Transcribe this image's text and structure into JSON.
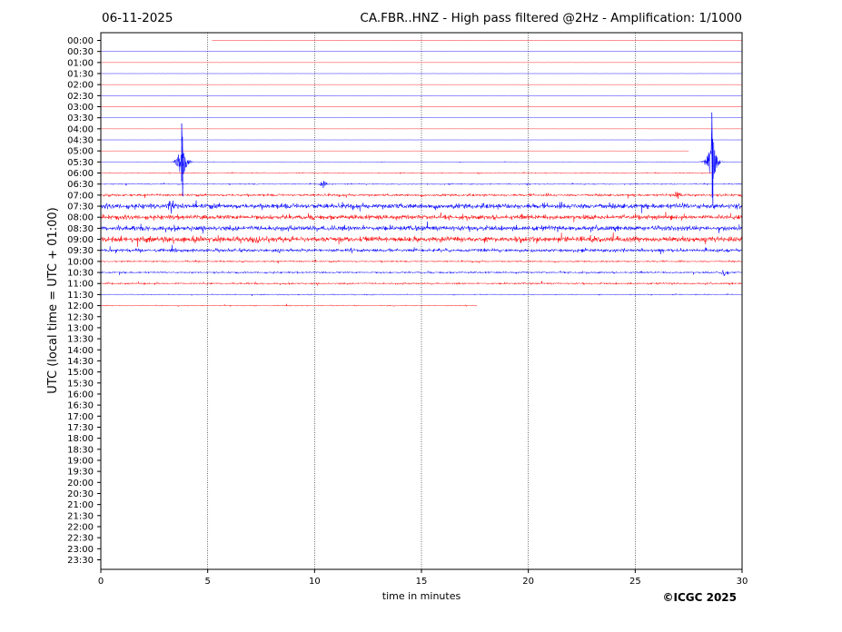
{
  "header": {
    "date": "06-11-2025",
    "title": "CA.FBR..HNZ - High pass filtered @2Hz - Amplification: 1/1000"
  },
  "footer": {
    "copyright": "©ICGC 2025"
  },
  "colors": {
    "trace_a": "#ff0000",
    "trace_b": "#0000ff",
    "grid": "#000000"
  },
  "chart_data": {
    "type": "line",
    "title": "CA.FBR..HNZ - High pass filtered @2Hz - Amplification: 1/1000",
    "xlabel": "time in minutes",
    "ylabel": "UTC (local time = UTC + 01:00)",
    "xlim": [
      0,
      30
    ],
    "x_ticks": [
      "0",
      "5",
      "10",
      "15",
      "20",
      "25",
      "30"
    ],
    "grid": "vertical dotted lines at 5-minute intervals",
    "rows": [
      "00:00",
      "00:30",
      "01:00",
      "01:30",
      "02:00",
      "02:30",
      "03:00",
      "03:30",
      "04:00",
      "04:30",
      "05:00",
      "05:30",
      "06:00",
      "06:30",
      "07:00",
      "07:30",
      "08:00",
      "08:30",
      "09:00",
      "09:30",
      "10:00",
      "10:30",
      "11:00",
      "11:30",
      "12:00",
      "12:30",
      "13:00",
      "13:30",
      "14:00",
      "14:30",
      "15:00",
      "15:30",
      "16:00",
      "16:30",
      "17:00",
      "17:30",
      "18:00",
      "18:30",
      "19:00",
      "19:30",
      "20:00",
      "20:30",
      "21:00",
      "21:30",
      "22:00",
      "22:30",
      "23:00",
      "23:30"
    ],
    "trace_color_order": [
      "red",
      "blue"
    ],
    "trace_start_minute": [
      5.2,
      0,
      0,
      0,
      0,
      0,
      0,
      0,
      0,
      0,
      0,
      0,
      0,
      0,
      0,
      0,
      0,
      0,
      0,
      0,
      0,
      0,
      0,
      0,
      0
    ],
    "trace_end_minute": [
      30,
      30,
      30,
      30,
      30,
      30,
      30,
      30,
      30,
      30,
      27.5,
      30,
      28.6,
      30,
      30,
      30,
      30,
      30,
      30,
      30,
      30,
      30,
      30,
      30,
      17.6
    ],
    "noise_level": [
      0.1,
      0.1,
      0.1,
      0.1,
      0.1,
      0.1,
      0.1,
      0.1,
      0.1,
      0.1,
      0.1,
      0.3,
      0.5,
      0.6,
      1.2,
      2.5,
      2.2,
      2.4,
      2.6,
      1.6,
      0.8,
      0.9,
      0.9,
      0.5,
      0.5
    ],
    "events": [
      {
        "row": "05:30",
        "minute": 3.8,
        "amplitude": 3.5
      },
      {
        "row": "05:30",
        "minute": 28.6,
        "amplitude": 4.5
      },
      {
        "row": "06:30",
        "minute": 10.4,
        "amplitude": 0.6
      },
      {
        "row": "07:30",
        "minute": 3.3,
        "amplitude": 0.8
      },
      {
        "row": "07:00",
        "minute": 27.0,
        "amplitude": 0.6
      },
      {
        "row": "10:30",
        "minute": 29.2,
        "amplitude": 0.6
      }
    ]
  }
}
